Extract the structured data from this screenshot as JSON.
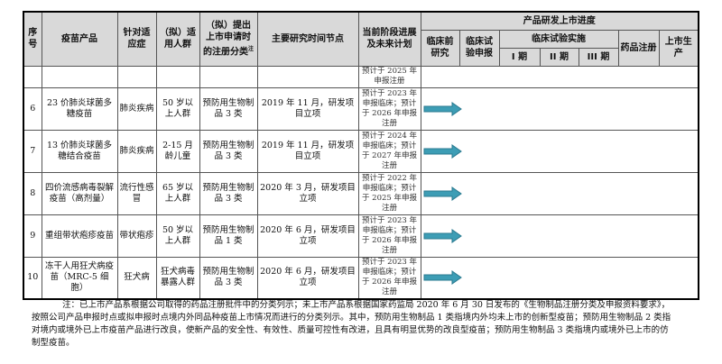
{
  "table": {
    "headers": {
      "seq": "序号",
      "product": "疫苗产品",
      "indication": "针对适应症",
      "population": "（拟）适用人群",
      "registration": "（拟）提出上市申请时的注册分类",
      "registration_sup": "注",
      "milestone": "主要研究时间节点",
      "plan": "当前阶段进展及未来计划",
      "progress": "产品研发上市进度",
      "preclinical": "临床前研究",
      "ind": "临床试验申报",
      "clinical": "临床试验实施",
      "phase1": "I 期",
      "phase2": "II 期",
      "phase3": "III 期",
      "approval": "药品注册",
      "launch": "上市生产"
    },
    "partial_row": {
      "plan": "预计于 2025 年申报注册"
    },
    "rows": [
      {
        "seq": "6",
        "product": "23 价肺炎球菌多糖疫苗",
        "indication": "肺炎疾病",
        "population": "50 岁以上人群",
        "registration": "预防用生物制品 3 类",
        "milestone": "2019 年 11 月，研发项目立项",
        "plan": "预计于 2023 年申报临床；预计于 2026 年申报注册",
        "stage": "preclinical"
      },
      {
        "seq": "7",
        "product": "13 价肺炎球菌多糖结合疫苗",
        "indication": "肺炎疾病",
        "population": "2-15 月龄儿童",
        "registration": "预防用生物制品 3 类",
        "milestone": "2019 年 11 月，研发项目立项",
        "plan": "预计于 2024 年申报临床；预计于 2027 年申报注册",
        "stage": "preclinical"
      },
      {
        "seq": "8",
        "product": "四价流感病毒裂解疫苗（高剂量）",
        "indication": "流行性感冒",
        "population": "65 岁以上人群",
        "registration": "预防用生物制品 3 类",
        "milestone": "2020 年 3 月，研发项目立项",
        "plan": "预计于 2022 年申报临床；预计于 2025 年申报注册",
        "stage": "preclinical"
      },
      {
        "seq": "9",
        "product": "重组带状疱疹疫苗",
        "indication": "带状疱疹",
        "population": "50 岁以上人群",
        "registration": "预防用生物制品 1 类",
        "milestone": "2020 年 6 月，研发项目立项",
        "plan": "预计于 2023 年申报临床；预计于 2026 年申报注册",
        "stage": "preclinical"
      },
      {
        "seq": "10",
        "product": "冻干人用狂犬病疫苗（MRC-5 细胞）",
        "indication": "狂犬病",
        "population": "狂犬病毒暴露人群",
        "registration": "预防用生物制品 3 类",
        "milestone": "2020 年 6 月，研发项目立项",
        "plan": "预计于 2023 年申报临床；预计于 2026 年申报注册",
        "stage": "preclinical"
      }
    ]
  },
  "note": "注：已上市产品系根据公司取得的药品注册批件中的分类列示；未上市产品系根据国家药监局 2020 年 6 月 30 日发布的《生物制品注册分类及申报资料要求》，按照公司产品申报时点或拟申报时点境内外同品种疫苗上市情况而进行的分类列示。其中，预防用生物制品 1 类指境内外均未上市的创新型疫苗；预防用生物制品 2 类指对境内或境外已上市疫苗产品进行改良，使新产品的安全性、有效性、质量可控性有改进，且具有明显优势的改良型疫苗；预防用生物制品 3 类指境内或境外已上市的仿制型疫苗。",
  "colors": {
    "header_bg": "#d9d9d9",
    "arrow": "#3d9db5",
    "arrow_stroke": "#2a7a90"
  }
}
